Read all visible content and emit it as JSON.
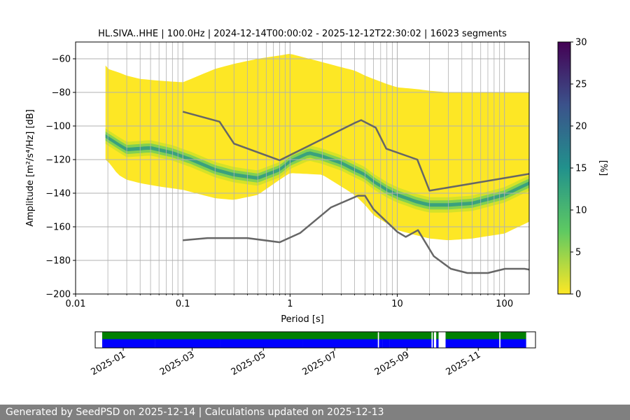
{
  "chart_data": [
    {
      "type": "heatmap",
      "title": "HL.SIVA..HHE | 100.0Hz | 2024-12-14T00:00:02 - 2025-12-12T22:30:02 | 16023 segments",
      "xlabel": "Period [s]",
      "ylabel": "Amplitude [m²/s⁴/Hz] [dB]",
      "x_scale": "log",
      "xlim": [
        0.01,
        170
      ],
      "ylim": [
        -200,
        -50
      ],
      "x_ticks": [
        {
          "value": 0.01,
          "label": "0.01"
        },
        {
          "value": 0.1,
          "label": "0.1"
        },
        {
          "value": 1,
          "label": "1"
        },
        {
          "value": 10,
          "label": "10"
        },
        {
          "value": 100,
          "label": "100"
        }
      ],
      "y_ticks": [
        {
          "value": -60,
          "label": "−60"
        },
        {
          "value": -80,
          "label": "−80"
        },
        {
          "value": -100,
          "label": "−100"
        },
        {
          "value": -120,
          "label": "−120"
        },
        {
          "value": -140,
          "label": "−140"
        },
        {
          "value": -160,
          "label": "−160"
        },
        {
          "value": -180,
          "label": "−180"
        },
        {
          "value": -200,
          "label": "−200"
        }
      ],
      "grid": true,
      "colorbar": {
        "label": "[%]",
        "range": [
          0,
          30
        ],
        "ticks": [
          {
            "value": 0,
            "label": "0"
          },
          {
            "value": 5,
            "label": "5"
          },
          {
            "value": 10,
            "label": "10"
          },
          {
            "value": 15,
            "label": "15"
          },
          {
            "value": 20,
            "label": "20"
          },
          {
            "value": 25,
            "label": "25"
          },
          {
            "value": 30,
            "label": "30"
          }
        ],
        "colormap": [
          "#fde725",
          "#5ec962",
          "#21918c",
          "#3b528b",
          "#440154"
        ]
      },
      "psd_envelope": {
        "x": [
          0.019,
          0.02,
          0.025,
          0.03,
          0.04,
          0.06,
          0.1,
          0.2,
          0.3,
          0.5,
          0.8,
          1,
          2,
          3,
          4,
          5,
          6,
          8,
          10,
          15,
          20,
          30,
          50,
          100,
          170
        ],
        "lower": [
          -120,
          -121,
          -129,
          -132,
          -134,
          -136,
          -138,
          -143,
          -144,
          -141,
          -132,
          -128,
          -129,
          -136,
          -141,
          -147,
          -153,
          -158,
          -162,
          -165,
          -167,
          -168,
          -167,
          -164,
          -157
        ],
        "upper": [
          -64,
          -66,
          -68,
          -70,
          -72,
          -73,
          -74,
          -66,
          -63,
          -60,
          -58,
          -57,
          -62,
          -65,
          -67,
          -70,
          -72,
          -75,
          -77,
          -78,
          -79,
          -80,
          -80,
          -80,
          -80
        ]
      },
      "mode_curve": {
        "x": [
          0.019,
          0.025,
          0.03,
          0.05,
          0.08,
          0.12,
          0.2,
          0.3,
          0.5,
          0.8,
          1,
          1.5,
          2,
          3,
          4,
          5,
          6,
          8,
          10,
          15,
          20,
          30,
          50,
          100,
          170
        ],
        "y": [
          -106,
          -111,
          -114,
          -113,
          -116,
          -120,
          -126,
          -129,
          -131,
          -126,
          -121,
          -116,
          -118,
          -122,
          -126,
          -129,
          -133,
          -138,
          -141,
          -145,
          -147,
          -147,
          -146,
          -141,
          -134
        ]
      },
      "series": [
        {
          "name": "",
          "x": [
            0.1,
            0.22,
            0.3,
            0.8,
            4,
            4.6,
            6.3,
            7.9,
            15.4,
            20,
            100,
            170
          ],
          "y": [
            -91.5,
            -97.4,
            -110.5,
            -120.4,
            -98.2,
            -96.5,
            -101,
            -113.5,
            -120,
            -138.5,
            -131,
            -128.5
          ]
        },
        {
          "name": "",
          "x": [
            0.1,
            0.17,
            0.4,
            0.8,
            1.24,
            2.4,
            4.3,
            5,
            6,
            10,
            12,
            15.6,
            21.9,
            31.6,
            45,
            70,
            101,
            154,
            170
          ],
          "y": [
            -168,
            -166.7,
            -166.7,
            -169.2,
            -163.7,
            -148.5,
            -141.5,
            -141.5,
            -149.5,
            -163,
            -166,
            -162,
            -177.5,
            -185,
            -187.5,
            -187.5,
            -185,
            -185,
            -185.5
          ]
        }
      ]
    },
    {
      "type": "timeline",
      "x_type": "date",
      "xlim": [
        "2024-12-08",
        "2025-12-20"
      ],
      "x_ticks": [
        "2025-01",
        "2025-03",
        "2025-05",
        "2025-07",
        "2025-09",
        "2025-11"
      ],
      "colors": {
        "top_band": "#008000",
        "bottom_band": "#0000ff"
      },
      "top_band_segments": [
        [
          "2024-12-14",
          "2025-08-07"
        ],
        [
          "2025-08-08",
          "2025-09-22"
        ],
        [
          "2025-09-23",
          "2025-09-24"
        ],
        [
          "2025-09-26",
          "2025-09-28"
        ],
        [
          "2025-10-04",
          "2025-11-19"
        ],
        [
          "2025-11-20",
          "2025-12-12"
        ]
      ],
      "bottom_band_segments": [
        [
          "2024-12-14",
          "2025-01-28"
        ],
        [
          "2025-01-28",
          "2025-03-25"
        ],
        [
          "2025-03-25",
          "2025-06-04"
        ],
        [
          "2025-06-04",
          "2025-08-07"
        ],
        [
          "2025-08-08",
          "2025-08-11"
        ],
        [
          "2025-08-11",
          "2025-08-17"
        ],
        [
          "2025-08-17",
          "2025-09-22"
        ],
        [
          "2025-09-23",
          "2025-09-24"
        ],
        [
          "2025-09-26",
          "2025-09-28"
        ],
        [
          "2025-10-04",
          "2025-11-19"
        ],
        [
          "2025-11-20",
          "2025-12-12"
        ]
      ]
    }
  ],
  "footer": {
    "text": "Generated by SeedPSD on 2025-12-14 | Calculations updated on 2025-12-13"
  }
}
